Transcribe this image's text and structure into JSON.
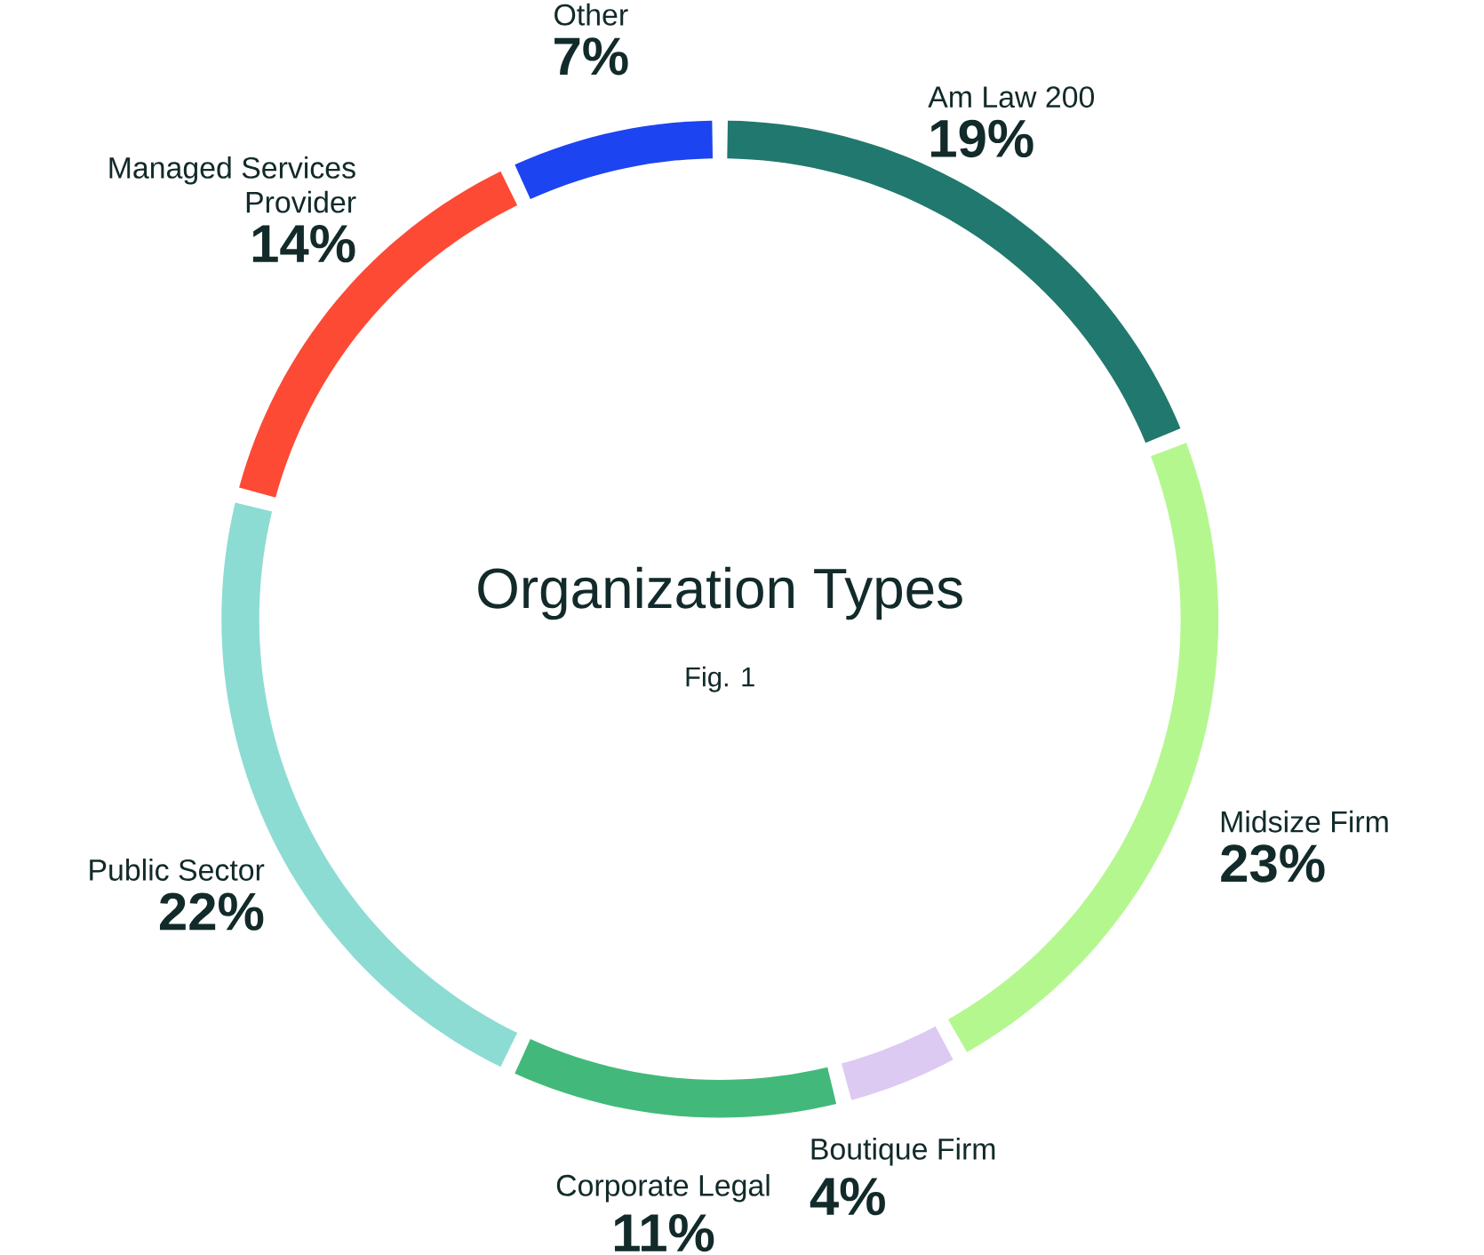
{
  "chart_data": {
    "type": "donut",
    "title": "Organization Types",
    "subtitle": "Fig. 1",
    "categories": [
      "Am Law 200",
      "Midsize Firm",
      "Boutique Firm",
      "Corporate Legal",
      "Public Sector",
      "Managed Services Provider",
      "Other"
    ],
    "values": [
      19,
      23,
      4,
      11,
      22,
      14,
      7
    ],
    "value_labels": [
      "19%",
      "23%",
      "4%",
      "11%",
      "22%",
      "14%",
      "7%"
    ],
    "colors": [
      "#21786e",
      "#b5f78f",
      "#dccaf3",
      "#42b97a",
      "#8ddcd4",
      "#fd4a35",
      "#1c44f0"
    ]
  }
}
